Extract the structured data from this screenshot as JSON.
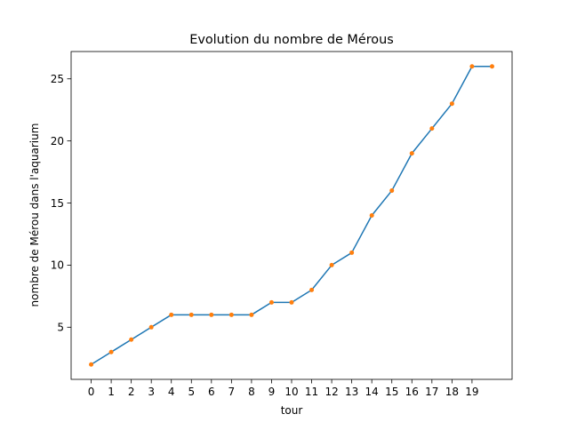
{
  "chart_data": {
    "type": "line",
    "title": "Evolution du nombre de Mérous",
    "xlabel": "tour",
    "ylabel": "nombre de Mérou dans l'aquarium",
    "x": [
      0,
      1,
      2,
      3,
      4,
      5,
      6,
      7,
      8,
      9,
      10,
      11,
      12,
      13,
      14,
      15,
      16,
      17,
      18,
      19,
      20
    ],
    "series": [
      {
        "values": [
          2,
          3,
          4,
          5,
          6,
          6,
          6,
          6,
          6,
          7,
          7,
          8,
          10,
          11,
          14,
          16,
          19,
          21,
          23,
          26,
          26
        ],
        "line_color": "#1f77b4",
        "marker_color": "#ff7f0e"
      }
    ],
    "xticks": [
      "0",
      "1",
      "2",
      "3",
      "4",
      "5",
      "6",
      "7",
      "8",
      "9",
      "10",
      "11",
      "12",
      "13",
      "14",
      "15",
      "16",
      "17",
      "18",
      "19"
    ],
    "yticks": [
      "5",
      "10",
      "15",
      "20",
      "25"
    ],
    "xlim": [
      -1,
      21
    ],
    "ylim": [
      0.8,
      27.2
    ],
    "grid": false,
    "legend": "none"
  }
}
